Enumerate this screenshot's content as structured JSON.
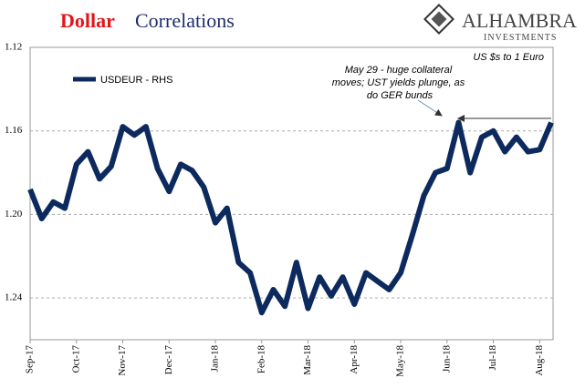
{
  "chart_data": {
    "type": "line",
    "title": {
      "accent": "Dollar",
      "text": "Correlations"
    },
    "logo": {
      "name": "ALHAMBRA",
      "tagline": "INVESTMENTS"
    },
    "subtitle": "US $s to 1 Euro",
    "annotation": [
      "May 29 - huge collateral",
      "moves; UST yields plunge, as",
      "do GER bunds"
    ],
    "categories": [
      "Sep-17",
      null,
      null,
      null,
      "Oct-17",
      null,
      null,
      null,
      "Nov-17",
      null,
      null,
      null,
      "Dec-17",
      null,
      null,
      null,
      "Jan-18",
      null,
      null,
      null,
      "Feb-18",
      null,
      null,
      null,
      "Mar-18",
      null,
      null,
      null,
      "Apr-18",
      null,
      null,
      null,
      "May-18",
      null,
      null,
      null,
      "Jun-18",
      null,
      null,
      null,
      "Jul-18",
      null,
      null,
      null,
      "Aug-18",
      null
    ],
    "series": [
      {
        "name": "USDEUR - RHS",
        "color": "#0d2a5e",
        "values": [
          1.188,
          1.202,
          1.194,
          1.197,
          1.176,
          1.17,
          1.183,
          1.177,
          1.158,
          1.162,
          1.158,
          1.178,
          1.189,
          1.176,
          1.179,
          1.187,
          1.204,
          1.197,
          1.223,
          1.228,
          1.247,
          1.236,
          1.244,
          1.223,
          1.245,
          1.23,
          1.239,
          1.23,
          1.243,
          1.228,
          1.232,
          1.236,
          1.228,
          1.21,
          1.191,
          1.18,
          1.178,
          1.156,
          1.18,
          1.163,
          1.16,
          1.17,
          1.163,
          1.17,
          1.169,
          1.156
        ]
      }
    ],
    "ylim": [
      1.12,
      1.26
    ],
    "y_inverted": true,
    "yticks": [
      1.12,
      1.16,
      {
        "value": 1.2,
        "label": "1.20"
      },
      1.24
    ],
    "grid": true
  }
}
